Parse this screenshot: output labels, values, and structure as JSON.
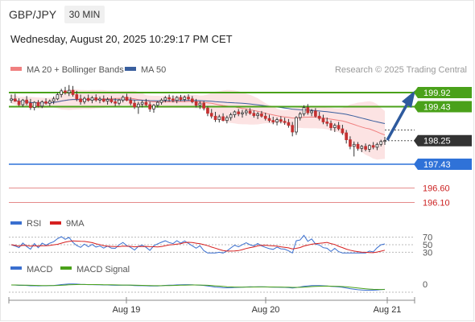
{
  "header": {
    "symbol": "GBP/JPY",
    "timeframe": "30 MIN",
    "datetime": "Wednesday, August 20, 2025 10:29:17 PM CET",
    "copyright": "Research © 2025 Trading Central"
  },
  "chart_data": [
    {
      "type": "candlestick",
      "title": "",
      "legend": [
        {
          "name": "MA 20 + Bollinger Bands",
          "color": "#f08080"
        },
        {
          "name": "MA 50",
          "color": "#3a5f9e"
        }
      ],
      "x_ticks": [
        "Aug 19",
        "Aug 20",
        "Aug 21"
      ],
      "ylim": [
        196.0,
        200.3
      ],
      "current_price": 198.25,
      "levels": [
        {
          "value": 199.92,
          "label": "199.92",
          "color": "#4aa11a"
        },
        {
          "value": 199.43,
          "label": "199.43",
          "color": "#4aa11a"
        },
        {
          "value": 198.25,
          "label": "198.25",
          "color": "#333333"
        },
        {
          "value": 197.43,
          "label": "197.43",
          "color": "#2f72d8"
        },
        {
          "value": 196.6,
          "label": "196.60",
          "color": "#cc2222"
        },
        {
          "value": 196.1,
          "label": "196.10",
          "color": "#cc2222"
        }
      ],
      "candles": [
        [
          199.65,
          199.85,
          199.56,
          199.7
        ],
        [
          199.7,
          199.88,
          199.6,
          199.62
        ],
        [
          199.62,
          199.72,
          199.45,
          199.5
        ],
        [
          199.5,
          199.7,
          199.42,
          199.66
        ],
        [
          199.66,
          199.8,
          199.48,
          199.55
        ],
        [
          199.55,
          199.7,
          199.32,
          199.4
        ],
        [
          199.4,
          199.62,
          199.3,
          199.58
        ],
        [
          199.58,
          199.66,
          199.4,
          199.45
        ],
        [
          199.45,
          199.65,
          199.38,
          199.6
        ],
        [
          199.6,
          199.72,
          199.5,
          199.55
        ],
        [
          199.55,
          199.68,
          199.45,
          199.62
        ],
        [
          199.62,
          199.78,
          199.52,
          199.7
        ],
        [
          199.7,
          199.92,
          199.65,
          199.85
        ],
        [
          199.85,
          200.05,
          199.75,
          199.98
        ],
        [
          199.98,
          200.12,
          199.85,
          199.92
        ],
        [
          199.92,
          200.18,
          199.8,
          200.0
        ],
        [
          200.0,
          200.15,
          199.78,
          199.85
        ],
        [
          199.85,
          199.98,
          199.62,
          199.7
        ],
        [
          199.7,
          199.85,
          199.5,
          199.6
        ],
        [
          199.6,
          199.78,
          199.52,
          199.72
        ],
        [
          199.72,
          199.85,
          199.6,
          199.65
        ],
        [
          199.65,
          199.8,
          199.55,
          199.74
        ],
        [
          199.74,
          199.86,
          199.6,
          199.66
        ],
        [
          199.66,
          199.78,
          199.55,
          199.7
        ],
        [
          199.7,
          199.82,
          199.58,
          199.62
        ],
        [
          199.62,
          199.75,
          199.5,
          199.68
        ],
        [
          199.68,
          199.8,
          199.55,
          199.6
        ],
        [
          199.6,
          199.72,
          199.45,
          199.55
        ],
        [
          199.55,
          199.7,
          199.48,
          199.66
        ],
        [
          199.66,
          199.82,
          199.58,
          199.76
        ],
        [
          199.76,
          199.88,
          199.62,
          199.65
        ],
        [
          199.65,
          199.76,
          199.48,
          199.55
        ],
        [
          199.55,
          199.66,
          199.35,
          199.42
        ],
        [
          199.42,
          199.6,
          199.18,
          199.52
        ],
        [
          199.52,
          199.65,
          199.4,
          199.58
        ],
        [
          199.58,
          199.7,
          199.45,
          199.5
        ],
        [
          199.5,
          199.6,
          199.25,
          199.35
        ],
        [
          199.35,
          199.52,
          199.22,
          199.48
        ],
        [
          199.48,
          199.62,
          199.4,
          199.58
        ],
        [
          199.58,
          199.72,
          199.5,
          199.66
        ],
        [
          199.66,
          199.8,
          199.58,
          199.74
        ],
        [
          199.74,
          199.85,
          199.6,
          199.7
        ],
        [
          199.7,
          199.82,
          199.58,
          199.65
        ],
        [
          199.65,
          199.8,
          199.55,
          199.75
        ],
        [
          199.75,
          199.84,
          199.62,
          199.68
        ],
        [
          199.68,
          199.82,
          199.6,
          199.76
        ],
        [
          199.76,
          199.86,
          199.65,
          199.7
        ],
        [
          199.7,
          199.8,
          199.55,
          199.6
        ],
        [
          199.6,
          199.7,
          199.4,
          199.48
        ],
        [
          199.48,
          199.62,
          199.35,
          199.55
        ],
        [
          199.55,
          199.62,
          199.3,
          199.38
        ],
        [
          199.38,
          199.45,
          199.1,
          199.2
        ],
        [
          199.2,
          199.35,
          199.02,
          199.1
        ],
        [
          199.1,
          199.25,
          198.9,
          198.98
        ],
        [
          198.98,
          199.15,
          198.88,
          199.08
        ],
        [
          199.08,
          199.2,
          198.92,
          198.95
        ],
        [
          198.95,
          199.12,
          198.85,
          199.05
        ],
        [
          199.05,
          199.22,
          198.95,
          199.15
        ],
        [
          199.15,
          199.3,
          199.05,
          199.25
        ],
        [
          199.25,
          199.35,
          199.1,
          199.18
        ],
        [
          199.18,
          199.32,
          199.05,
          199.22
        ],
        [
          199.22,
          199.35,
          199.12,
          199.28
        ],
        [
          199.28,
          199.38,
          199.15,
          199.2
        ],
        [
          199.2,
          199.3,
          199.05,
          199.12
        ],
        [
          199.12,
          199.25,
          199.0,
          199.18
        ],
        [
          199.18,
          199.28,
          199.05,
          199.1
        ],
        [
          199.1,
          199.22,
          198.95,
          199.02
        ],
        [
          199.02,
          199.15,
          198.88,
          198.95
        ],
        [
          198.95,
          199.08,
          198.82,
          198.9
        ],
        [
          198.9,
          199.05,
          198.78,
          198.98
        ],
        [
          198.98,
          199.1,
          198.85,
          198.92
        ],
        [
          198.92,
          199.05,
          198.8,
          198.88
        ],
        [
          198.88,
          199.0,
          198.7,
          198.78
        ],
        [
          198.78,
          198.9,
          198.4,
          198.55
        ],
        [
          198.55,
          199.1,
          198.45,
          199.05
        ],
        [
          199.05,
          199.25,
          198.95,
          199.18
        ],
        [
          199.18,
          199.48,
          199.1,
          199.4
        ],
        [
          199.4,
          199.52,
          199.15,
          199.22
        ],
        [
          199.22,
          199.35,
          199.1,
          199.28
        ],
        [
          199.28,
          199.38,
          199.05,
          199.1
        ],
        [
          199.1,
          199.25,
          198.95,
          199.02
        ],
        [
          199.02,
          199.15,
          198.82,
          198.9
        ],
        [
          198.9,
          199.05,
          198.75,
          198.85
        ],
        [
          198.85,
          198.95,
          198.6,
          198.7
        ],
        [
          198.7,
          198.85,
          198.55,
          198.78
        ],
        [
          198.78,
          198.9,
          198.6,
          198.66
        ],
        [
          198.66,
          198.8,
          198.45,
          198.52
        ],
        [
          198.52,
          198.62,
          198.15,
          198.28
        ],
        [
          198.28,
          198.4,
          197.95,
          198.05
        ],
        [
          198.05,
          198.22,
          197.7,
          198.12
        ],
        [
          198.12,
          198.2,
          197.9,
          197.98
        ],
        [
          197.98,
          198.1,
          197.85,
          198.05
        ],
        [
          198.05,
          198.15,
          197.88,
          197.95
        ],
        [
          197.95,
          198.12,
          197.85,
          198.08
        ],
        [
          198.08,
          198.2,
          197.95,
          198.02
        ],
        [
          198.02,
          198.18,
          197.92,
          198.12
        ],
        [
          198.12,
          198.28,
          198.05,
          198.22
        ],
        [
          198.22,
          198.38,
          198.1,
          198.25
        ]
      ]
    },
    {
      "type": "line",
      "title": "",
      "legend": [
        {
          "name": "RSI",
          "color": "#3a6fcf"
        },
        {
          "name": "9MA",
          "color": "#d62020"
        }
      ],
      "y_ticks": [
        "70",
        "50",
        "30"
      ],
      "ylim": [
        20,
        80
      ]
    },
    {
      "type": "line",
      "title": "",
      "legend": [
        {
          "name": "MACD",
          "color": "#3a6fcf"
        },
        {
          "name": "MACD Signal",
          "color": "#4aa11a"
        }
      ],
      "y_ticks": [
        "0"
      ]
    }
  ]
}
